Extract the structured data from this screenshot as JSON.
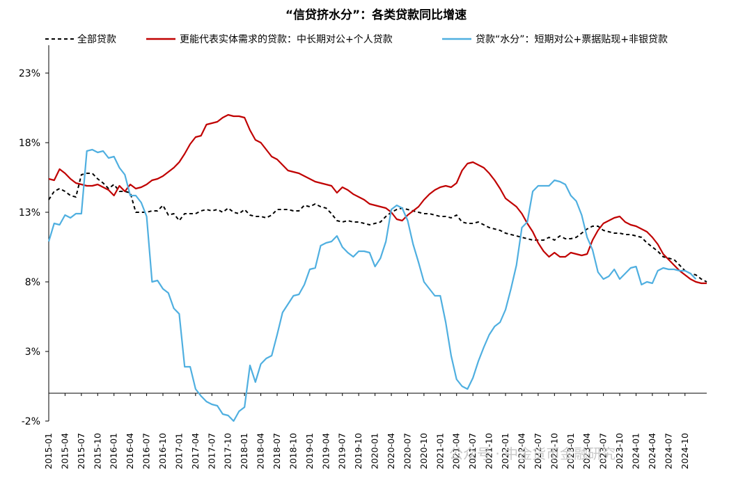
{
  "chart_data": {
    "type": "line",
    "title": "“信贷挤水分”：各类贷款同比增速",
    "xlabel": "",
    "ylabel": "",
    "ylim": [
      -2,
      25
    ],
    "yticks": [
      "-2%",
      "3%",
      "8%",
      "13%",
      "18%",
      "23%"
    ],
    "ytick_values": [
      -2,
      3,
      8,
      13,
      18,
      23
    ],
    "zero_line": 0,
    "x_start": "2015-01",
    "x_end": "2024-10",
    "xtick_labels": [
      "2015-01",
      "2015-04",
      "2015-07",
      "2015-10",
      "2016-01",
      "2016-04",
      "2016-07",
      "2016-10",
      "2017-01",
      "2017-04",
      "2017-07",
      "2017-10",
      "2018-01",
      "2018-04",
      "2018-07",
      "2018-10",
      "2019-01",
      "2019-04",
      "2019-07",
      "2019-10",
      "2020-01",
      "2020-04",
      "2020-07",
      "2020-10",
      "2021-01",
      "2021-04",
      "2021-07",
      "2021-10",
      "2022-01",
      "2022-04",
      "2022-07",
      "2022-10",
      "2023-01",
      "2023-04",
      "2023-07",
      "2023-10",
      "2024-01",
      "2024-04",
      "2024-07",
      "2024-10"
    ],
    "legend_position": "top",
    "series": [
      {
        "name": "全部贷款",
        "style": "dashed",
        "color": "#000000",
        "values": [
          13.9,
          14.5,
          14.7,
          14.5,
          14.2,
          14.1,
          15.7,
          15.8,
          15.8,
          15.4,
          15.1,
          14.7,
          15.0,
          14.5,
          14.5,
          14.4,
          13.0,
          13.0,
          13.0,
          13.1,
          13.1,
          13.5,
          12.8,
          12.9,
          12.4,
          12.9,
          12.9,
          12.9,
          13.1,
          13.2,
          13.1,
          13.2,
          13.0,
          13.3,
          13.0,
          12.9,
          13.2,
          12.8,
          12.7,
          12.7,
          12.6,
          12.8,
          13.2,
          13.2,
          13.2,
          13.1,
          13.1,
          13.5,
          13.4,
          13.6,
          13.4,
          13.3,
          12.9,
          12.4,
          12.3,
          12.4,
          12.3,
          12.3,
          12.2,
          12.1,
          12.2,
          12.3,
          12.7,
          13.0,
          13.2,
          13.3,
          13.2,
          13.1,
          13.0,
          12.9,
          12.9,
          12.8,
          12.7,
          12.7,
          12.6,
          12.8,
          12.3,
          12.2,
          12.2,
          12.3,
          12.1,
          11.9,
          11.8,
          11.7,
          11.5,
          11.4,
          11.3,
          11.2,
          11.1,
          11.0,
          11.0,
          11.0,
          11.2,
          11.0,
          11.3,
          11.1,
          11.1,
          11.2,
          11.5,
          11.8,
          12.0,
          12.0,
          11.7,
          11.6,
          11.5,
          11.5,
          11.4,
          11.4,
          11.3,
          11.2,
          10.8,
          10.5,
          10.2,
          9.8,
          9.7,
          9.6,
          9.2,
          8.8,
          8.6,
          8.5,
          8.2,
          8.0
        ]
      },
      {
        "name": "更能代表实体需求的贷款：中长期对公+个人贷款",
        "style": "solid",
        "color": "#c00000",
        "values": [
          15.4,
          15.3,
          16.1,
          15.8,
          15.4,
          15.1,
          15.0,
          14.9,
          14.9,
          15.0,
          14.8,
          14.6,
          14.2,
          14.9,
          14.5,
          15.0,
          14.7,
          14.8,
          15.0,
          15.3,
          15.4,
          15.6,
          15.9,
          16.2,
          16.6,
          17.2,
          17.9,
          18.4,
          18.5,
          19.3,
          19.4,
          19.5,
          19.8,
          20.0,
          19.9,
          19.9,
          19.8,
          18.9,
          18.2,
          18.0,
          17.5,
          17.0,
          16.8,
          16.4,
          16.0,
          15.9,
          15.8,
          15.6,
          15.4,
          15.2,
          15.1,
          15.0,
          14.9,
          14.4,
          14.8,
          14.6,
          14.3,
          14.1,
          13.9,
          13.6,
          13.5,
          13.4,
          13.3,
          13.0,
          12.5,
          12.4,
          12.8,
          13.1,
          13.4,
          13.9,
          14.3,
          14.6,
          14.8,
          14.9,
          14.8,
          15.1,
          16.0,
          16.5,
          16.6,
          16.4,
          16.2,
          15.8,
          15.3,
          14.7,
          14.0,
          13.7,
          13.4,
          12.9,
          12.2,
          11.6,
          10.8,
          10.2,
          9.8,
          10.1,
          9.8,
          9.8,
          10.1,
          10.0,
          9.9,
          10.0,
          11.0,
          11.7,
          12.2,
          12.4,
          12.6,
          12.7,
          12.3,
          12.1,
          12.0,
          11.8,
          11.6,
          11.2,
          10.7,
          10.0,
          9.6,
          9.2,
          8.8,
          8.5,
          8.2,
          8.0,
          7.9,
          7.9
        ]
      },
      {
        "name": "贷款“水分”：短期对公+票据贴现+非银贷款",
        "style": "solid",
        "color": "#4fafe0",
        "values": [
          10.9,
          12.2,
          12.1,
          12.8,
          12.6,
          12.9,
          12.9,
          17.4,
          17.5,
          17.3,
          17.4,
          16.9,
          17.0,
          16.2,
          15.7,
          14.2,
          14.2,
          13.7,
          12.7,
          8.0,
          8.1,
          7.5,
          7.2,
          6.1,
          5.7,
          1.9,
          1.9,
          0.3,
          -0.2,
          -0.6,
          -0.8,
          -0.9,
          -1.5,
          -1.6,
          -2.0,
          -1.3,
          -1.0,
          2.0,
          0.8,
          2.1,
          2.5,
          2.7,
          4.2,
          5.8,
          6.4,
          7.0,
          7.1,
          7.8,
          8.9,
          9.0,
          10.6,
          10.8,
          10.9,
          11.3,
          10.5,
          10.1,
          9.8,
          10.2,
          10.2,
          10.1,
          9.1,
          9.7,
          10.9,
          13.2,
          13.5,
          13.3,
          12.4,
          10.7,
          9.4,
          8.0,
          7.5,
          7.0,
          7.0,
          5.1,
          2.7,
          1.0,
          0.5,
          0.3,
          1.1,
          2.3,
          3.3,
          4.2,
          4.8,
          5.1,
          6.0,
          7.5,
          9.2,
          11.9,
          12.3,
          14.5,
          14.9,
          14.9,
          14.9,
          15.3,
          15.2,
          15.0,
          14.2,
          13.8,
          12.8,
          11.2,
          10.3,
          8.7,
          8.2,
          8.4,
          8.9,
          8.2,
          8.6,
          9.0,
          9.1,
          7.8,
          8.0,
          7.9,
          8.8,
          9.0,
          8.9,
          8.9,
          8.8,
          8.8,
          8.6,
          8.2
        ]
      }
    ]
  },
  "watermark": "公众号 · 中金货币金融研究"
}
